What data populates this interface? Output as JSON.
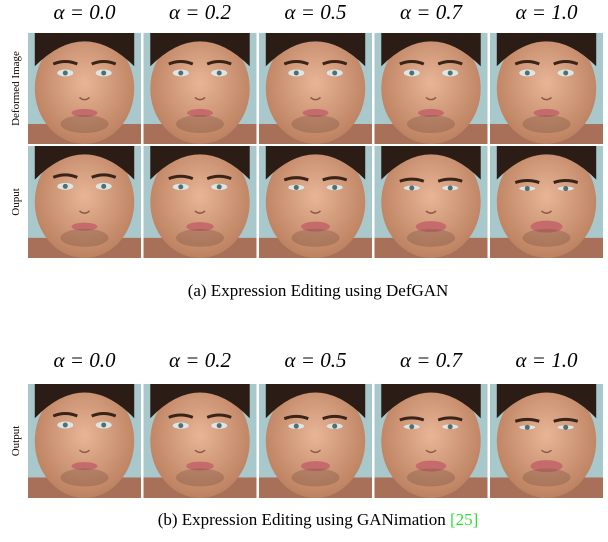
{
  "panels": [
    {
      "column_labels": [
        "α = 0.0",
        "α = 0.2",
        "α = 0.5",
        "α = 0.7",
        "α = 1.0"
      ],
      "rows": [
        {
          "label": "Deformed Image"
        },
        {
          "label": "Ouput"
        }
      ],
      "caption": "(a) Expression Editing using DefGAN"
    },
    {
      "column_labels": [
        "α = 0.0",
        "α = 0.2",
        "α = 0.5",
        "α = 0.7",
        "α = 1.0"
      ],
      "rows": [
        {
          "label": "Output"
        }
      ],
      "caption": "(b) Expression Editing using GANimation",
      "citation": "[25]"
    }
  ]
}
